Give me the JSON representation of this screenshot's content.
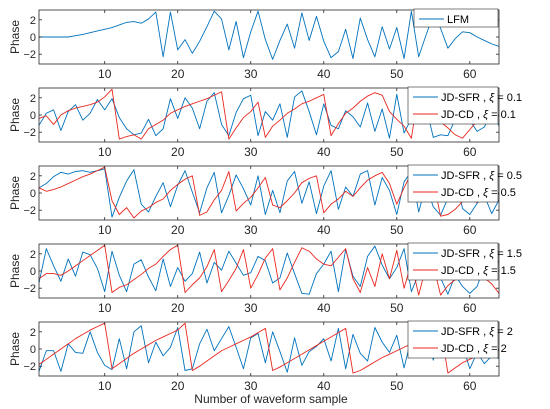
{
  "chart_data": {
    "type": "line",
    "xlabel": "Number of waveform sample",
    "x_ticks": [
      10,
      20,
      30,
      40,
      50,
      60
    ],
    "xlim": [
      1,
      64
    ],
    "colors": {
      "blue": "#0072BD",
      "red": "#E8271F"
    },
    "panels": [
      {
        "ylabel": "Phase",
        "ylim": [
          -3.14,
          3.14
        ],
        "yticks": [
          -2,
          0,
          2
        ],
        "legend_position": "top-right",
        "series": [
          {
            "name": "LFM",
            "color_key": "blue",
            "values": [
              0.0,
              0.0,
              0.0,
              0.0,
              0.0,
              0.15,
              0.3,
              0.5,
              0.7,
              0.9,
              1.1,
              1.4,
              1.7,
              1.8,
              1.6,
              2.1,
              2.9,
              -2.3,
              2.9,
              -1.5,
              -0.3,
              -1.9,
              -0.5,
              1.2,
              3.0,
              2.1,
              -1.5,
              1.8,
              -2.4,
              0.6,
              3.0,
              -0.3,
              -2.6,
              -0.4,
              1.5,
              -1.3,
              2.8,
              -0.4,
              2.4,
              -0.5,
              -2.4,
              -1.7,
              0.9,
              -2.5,
              2.2,
              -0.3,
              -2.3,
              1.2,
              -1.4,
              1.1,
              -2.5,
              3.0,
              -2.3,
              0.2,
              2.6,
              1.0,
              -1.3,
              -0.2,
              0.6,
              0.5,
              0.0,
              -0.4,
              -0.8,
              -1.1
            ]
          }
        ]
      },
      {
        "ylabel": "Phase",
        "ylim": [
          -3.14,
          3.14
        ],
        "yticks": [
          -2,
          0,
          2
        ],
        "legend_position": "top-right",
        "series": [
          {
            "name": "JD-SFR",
            "xi": "0.1",
            "color_key": "blue",
            "values": [
              -1.2,
              0.2,
              0.6,
              -1.8,
              0.4,
              1.2,
              -0.6,
              0.2,
              1.8,
              0.6,
              1.9,
              -0.3,
              -1.6,
              -2.3,
              -2.1,
              -0.5,
              -2.4,
              -1.6,
              1.9,
              -0.4,
              2.0,
              0.8,
              -1.6,
              1.6,
              2.6,
              -1.1,
              -2.4,
              0.3,
              1.9,
              2.3,
              -2.4,
              0.4,
              -0.6,
              1.3,
              -2.6,
              2.1,
              2.8,
              0.4,
              -2.3,
              1.3,
              -1.2,
              -1.6,
              0.5,
              -0.2,
              -1.4,
              1.4,
              -1.9,
              0.7,
              -2.7,
              2.4,
              -2.1,
              -0.4,
              2.5,
              1.0,
              -2.6,
              -2.3,
              -2.4,
              -0.5,
              1.2,
              -0.6,
              -1.9,
              -1.4,
              0.6,
              -1.3
            ]
          },
          {
            "name": "JD-CD",
            "xi": "0.1",
            "color_key": "red",
            "values": [
              -0.4,
              -0.1,
              -1.1,
              0.0,
              0.5,
              0.8,
              1.0,
              1.2,
              1.5,
              2.1,
              3.0,
              -2.8,
              -2.5,
              -2.3,
              -2.8,
              -1.6,
              -1.1,
              -0.6,
              0.2,
              0.6,
              1.0,
              1.3,
              1.6,
              1.9,
              2.3,
              2.7,
              -2.8,
              -1.5,
              -0.3,
              0.4,
              1.5,
              -2.6,
              -1.3,
              -0.6,
              0.2,
              0.7,
              1.3,
              1.6,
              2.0,
              2.4,
              -2.4,
              -1.0,
              0.2,
              0.8,
              1.6,
              2.2,
              2.6,
              2.3,
              0.4,
              -0.5,
              -1.3,
              -2.7,
              2.8,
              1.6,
              0.5,
              -0.8,
              -1.5,
              -2.3,
              -2.7,
              -1.7,
              -0.7,
              0.2,
              0.9,
              -0.2
            ]
          }
        ]
      },
      {
        "ylabel": "Phase",
        "ylim": [
          -3.14,
          3.14
        ],
        "yticks": [
          -2,
          0,
          2
        ],
        "legend_position": "top-right",
        "series": [
          {
            "name": "JD-SFR",
            "xi": "0.5",
            "color_key": "blue",
            "values": [
              0.6,
              1.1,
              1.9,
              2.4,
              2.2,
              2.5,
              2.6,
              2.4,
              2.6,
              2.8,
              -2.8,
              -0.5,
              1.4,
              2.7,
              -1.3,
              -2.2,
              -0.4,
              1.2,
              -1.6,
              0.9,
              2.6,
              0.1,
              -2.3,
              0.6,
              2.4,
              -2.3,
              -0.3,
              2.1,
              0.5,
              -1.4,
              2.0,
              -2.5,
              0.3,
              -2.3,
              1.4,
              2.5,
              -1.2,
              1.3,
              -2.4,
              0.8,
              2.6,
              -1.9,
              0.7,
              -0.4,
              2.2,
              2.6,
              -1.4,
              1.8,
              0.3,
              -2.5,
              1.3,
              2.5,
              -2.2,
              0.9,
              -1.6,
              -2.6,
              -0.6,
              2.2,
              -1.8,
              -2.5,
              -1.2,
              -0.3,
              -2.4,
              -0.8
            ]
          },
          {
            "name": "JD-CD",
            "xi": "0.5",
            "color_key": "red",
            "values": [
              0.6,
              0.2,
              0.4,
              0.7,
              1.1,
              1.5,
              1.9,
              2.2,
              2.6,
              3.0,
              -0.9,
              -2.5,
              -1.7,
              -2.9,
              -2.1,
              -1.7,
              -1.1,
              -0.7,
              0.3,
              1.0,
              1.6,
              2.0,
              -2.6,
              -2.2,
              -0.8,
              0.3,
              2.5,
              -2.1,
              -1.2,
              -0.5,
              0.6,
              1.8,
              -1.4,
              -1.7,
              -0.9,
              0.0,
              1.2,
              1.7,
              2.0,
              -2.3,
              -1.3,
              -0.7,
              0.2,
              -0.4,
              0.6,
              1.5,
              2.0,
              2.4,
              1.1,
              -1.3,
              0.6,
              2.3,
              2.5,
              2.8,
              1.5,
              -2.7,
              -2.5,
              -1.9,
              -1.0,
              -0.8,
              -1.1,
              -0.7,
              -0.3,
              -0.1
            ]
          }
        ]
      },
      {
        "ylabel": "Phase",
        "ylim": [
          -3.14,
          3.14
        ],
        "yticks": [
          -2,
          0,
          2
        ],
        "legend_position": "top-right",
        "series": [
          {
            "name": "JD-SFR",
            "xi": "1.5",
            "color_key": "blue",
            "values": [
              -1.4,
              2.6,
              0.6,
              -1.2,
              1.4,
              -0.6,
              2.2,
              1.9,
              0.3,
              -2.4,
              2.3,
              -0.5,
              -2.4,
              0.8,
              1.3,
              -0.7,
              -2.3,
              1.4,
              -1.8,
              0.4,
              -1.2,
              -0.3,
              2.2,
              -1.4,
              1.0,
              0.1,
              2.3,
              0.9,
              -0.5,
              -0.2,
              1.7,
              1.2,
              -1.4,
              -0.8,
              2.1,
              -0.3,
              -2.6,
              -2.7,
              -0.3,
              0.8,
              2.3,
              -2.4,
              2.5,
              -0.6,
              -1.8,
              1.7,
              2.9,
              0.7,
              -0.9,
              0.4,
              2.6,
              -2.4,
              -0.3,
              1.3,
              -0.7,
              -0.8,
              -2.7,
              -0.5,
              -1.8,
              -2.6,
              -1.8,
              0.6,
              2.0,
              1.0
            ]
          },
          {
            "name": "JD-CD",
            "xi": "1.5",
            "color_key": "red",
            "values": [
              -0.9,
              -0.3,
              -0.3,
              -0.5,
              0.0,
              0.6,
              1.2,
              1.8,
              2.4,
              3.0,
              -2.5,
              -1.9,
              -1.6,
              -1.0,
              -0.4,
              0.3,
              0.8,
              1.7,
              2.5,
              3.0,
              -2.5,
              -1.6,
              -0.8,
              0.5,
              2.5,
              -2.4,
              -1.1,
              0.3,
              2.5,
              -2.0,
              -0.4,
              1.5,
              2.6,
              -2.2,
              -0.8,
              1.0,
              2.7,
              2.3,
              1.4,
              0.8,
              0.6,
              1.6,
              2.6,
              -0.9,
              -2.5,
              0.4,
              -1.8,
              2.0,
              -0.9,
              2.4,
              -2.0,
              1.0,
              -2.8,
              0.5,
              0.7,
              -2.8,
              -1.7,
              -1.0,
              -0.5,
              0.1,
              -0.2,
              -0.8,
              -1.5,
              -2.6
            ]
          }
        ]
      },
      {
        "ylabel": "Phase",
        "ylim": [
          -3.14,
          3.14
        ],
        "yticks": [
          -2,
          0,
          2
        ],
        "legend_position": "top-right",
        "series": [
          {
            "name": "JD-SFR",
            "xi": "2",
            "color_key": "blue",
            "values": [
              -2.6,
              -0.2,
              -0.2,
              -2.6,
              0.6,
              -0.4,
              -0.5,
              2.0,
              -0.4,
              -1.9,
              -2.4,
              1.2,
              -2.3,
              2.0,
              2.7,
              -1.6,
              0.8,
              -0.8,
              0.2,
              2.5,
              -2.5,
              -2.3,
              0.6,
              2.3,
              -0.2,
              1.2,
              2.6,
              0.2,
              -2.3,
              1.3,
              1.8,
              -1.6,
              2.0,
              -0.3,
              -2.7,
              1.3,
              -1.9,
              -0.3,
              0.3,
              1.2,
              -1.4,
              2.4,
              -2.3,
              1.7,
              -0.5,
              -1.4,
              2.5,
              0.8,
              -0.4,
              1.6,
              -2.2,
              1.3,
              -0.6,
              2.2,
              -1.3,
              2.5,
              0.9,
              -0.9,
              0.5,
              -2.3,
              -0.4,
              -1.7,
              -0.8,
              -1.1
            ]
          },
          {
            "name": "JD-CD",
            "xi": "2",
            "color_key": "red",
            "values": [
              -1.8,
              -1.2,
              -0.6,
              0.0,
              0.6,
              1.2,
              1.7,
              2.2,
              2.6,
              3.0,
              -2.3,
              -1.7,
              -1.1,
              -0.5,
              0.0,
              0.5,
              1.0,
              1.4,
              1.8,
              2.2,
              3.0,
              -2.5,
              -2.0,
              -1.4,
              -0.8,
              -0.2,
              0.2,
              0.6,
              1.0,
              1.4,
              1.9,
              2.4,
              -2.5,
              -2.1,
              -1.6,
              -1.1,
              -0.6,
              -0.1,
              0.4,
              0.9,
              1.4,
              1.9,
              2.4,
              -2.8,
              -2.5,
              -2.0,
              -1.5,
              -1.0,
              -0.6,
              -0.2,
              0.2,
              0.6,
              1.1,
              1.5,
              2.0,
              2.6,
              -2.8,
              -2.2,
              -1.6,
              -1.2,
              -0.8,
              -0.4,
              0.1,
              -0.2
            ]
          }
        ]
      }
    ]
  }
}
